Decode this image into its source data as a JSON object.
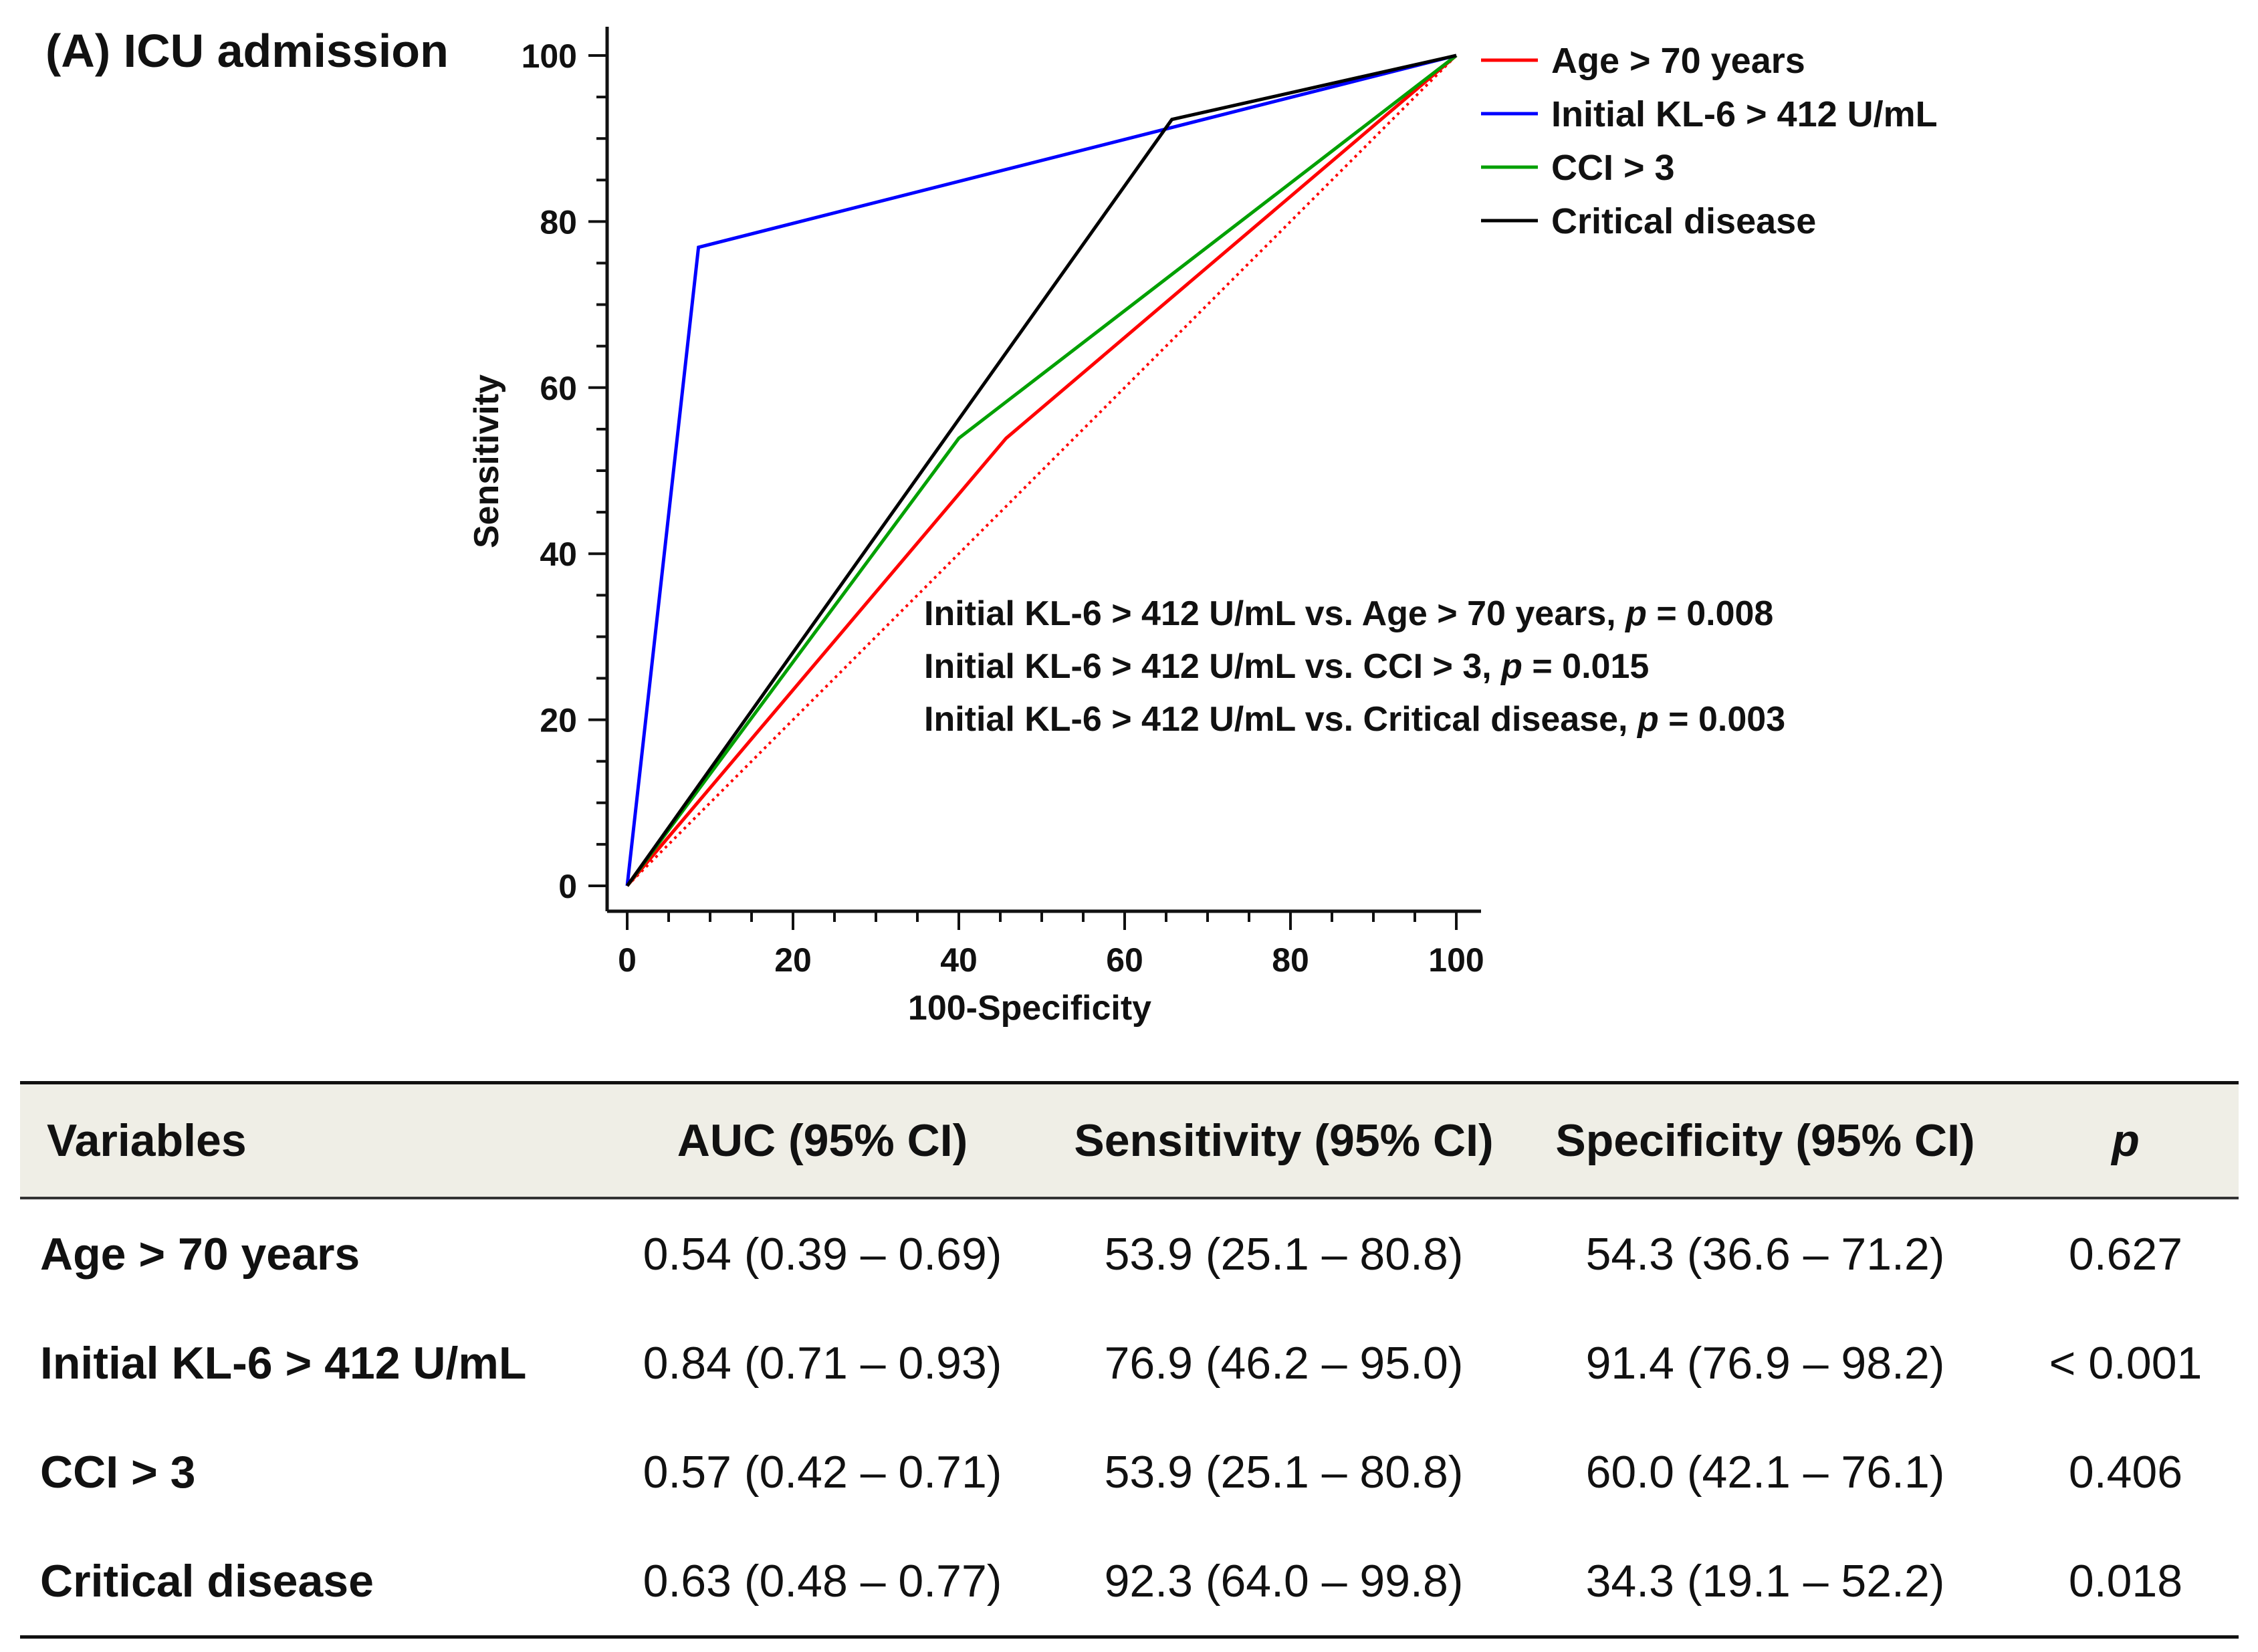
{
  "figure_title": "(A) ICU admission",
  "chart_data": {
    "type": "line",
    "title": "(A) ICU admission",
    "xlabel": "100-Specificity",
    "ylabel": "Sensitivity",
    "xlim": [
      0,
      100
    ],
    "ylim": [
      0,
      100
    ],
    "xticks": [
      0,
      20,
      40,
      60,
      80,
      100
    ],
    "yticks": [
      0,
      20,
      40,
      60,
      80,
      100
    ],
    "grid": false,
    "legend_position": "top-right",
    "series": [
      {
        "name": "Age > 70 years",
        "color": "#ff0000",
        "x": [
          0,
          45.7,
          100
        ],
        "y": [
          0,
          53.9,
          100
        ]
      },
      {
        "name": "Initial KL-6 > 412 U/mL",
        "color": "#0000ff",
        "x": [
          0,
          8.6,
          100
        ],
        "y": [
          0,
          76.9,
          100
        ]
      },
      {
        "name": "CCI > 3",
        "color": "#00a000",
        "x": [
          0,
          40.0,
          100
        ],
        "y": [
          0,
          53.9,
          100
        ]
      },
      {
        "name": "Critical disease",
        "color": "#000000",
        "x": [
          0,
          65.7,
          100
        ],
        "y": [
          0,
          92.3,
          100
        ]
      }
    ],
    "reference_line": {
      "color": "#ff0000",
      "x": [
        0,
        100
      ],
      "y": [
        0,
        100
      ]
    },
    "annotations": [
      {
        "text": "Initial KL-6 > 412 U/mL vs. Age > 70 years,",
        "p_label": "p",
        "p_value": " = 0.008"
      },
      {
        "text": "Initial KL-6 > 412 U/mL vs. CCI > 3,",
        "p_label": "p",
        "p_value": " = 0.015"
      },
      {
        "text": "Initial KL-6 > 412 U/mL vs. Critical disease,",
        "p_label": "p",
        "p_value": " = 0.003"
      }
    ]
  },
  "table": {
    "headers": {
      "variables": "Variables",
      "auc": "AUC (95% CI)",
      "sensitivity": "Sensitivity (95% CI)",
      "specificity": "Specificity (95% CI)",
      "p": "p"
    },
    "rows": [
      {
        "variable": "Age > 70 years",
        "auc": "0.54 (0.39 – 0.69)",
        "sensitivity": "53.9 (25.1 – 80.8)",
        "specificity": "54.3 (36.6 – 71.2)",
        "p": "0.627"
      },
      {
        "variable": "Initial KL-6 > 412 U/mL",
        "auc": "0.84 (0.71 – 0.93)",
        "sensitivity": "76.9 (46.2 – 95.0)",
        "specificity": "91.4 (76.9 – 98.2)",
        "p": "< 0.001"
      },
      {
        "variable": "CCI > 3",
        "auc": "0.57 (0.42 – 0.71)",
        "sensitivity": "53.9 (25.1 – 80.8)",
        "specificity": "60.0 (42.1 – 76.1)",
        "p": "0.406"
      },
      {
        "variable": "Critical disease",
        "auc": "0.63 (0.48 – 0.77)",
        "sensitivity": "92.3 (64.0 – 99.8)",
        "specificity": "34.3 (19.1 – 52.2)",
        "p": "0.018"
      }
    ]
  }
}
